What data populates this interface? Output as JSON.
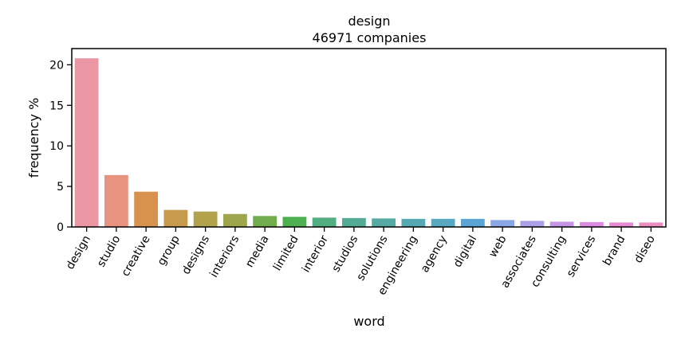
{
  "chart_data": {
    "type": "bar",
    "title": "design",
    "subtitle": "46971 companies",
    "xlabel": "word",
    "ylabel": "frequency %",
    "ylim": [
      0,
      22
    ],
    "yticks": [
      0,
      5,
      10,
      15,
      20
    ],
    "grid": false,
    "categories": [
      "design",
      "studio",
      "creative",
      "group",
      "designs",
      "interiors",
      "media",
      "limited",
      "interior",
      "studios",
      "solutions",
      "engineering",
      "agency",
      "digital",
      "web",
      "associates",
      "consulting",
      "services",
      "brand",
      "diseo"
    ],
    "values": [
      20.8,
      6.4,
      4.35,
      2.1,
      1.9,
      1.6,
      1.35,
      1.25,
      1.15,
      1.1,
      1.05,
      1.0,
      1.0,
      1.0,
      0.85,
      0.75,
      0.65,
      0.6,
      0.55,
      0.55
    ],
    "colors": [
      "#ea96a3",
      "#e89280",
      "#d9924e",
      "#c69c4c",
      "#b3a24c",
      "#9ea64c",
      "#71ad4c",
      "#4fb051",
      "#52ad80",
      "#54ab95",
      "#55aaa4",
      "#56a9b2",
      "#58a8c1",
      "#5ba5d4",
      "#8aa6e5",
      "#ada0e6",
      "#c795e5",
      "#dd8ae3",
      "#e88ad2",
      "#ea8fc0"
    ]
  }
}
